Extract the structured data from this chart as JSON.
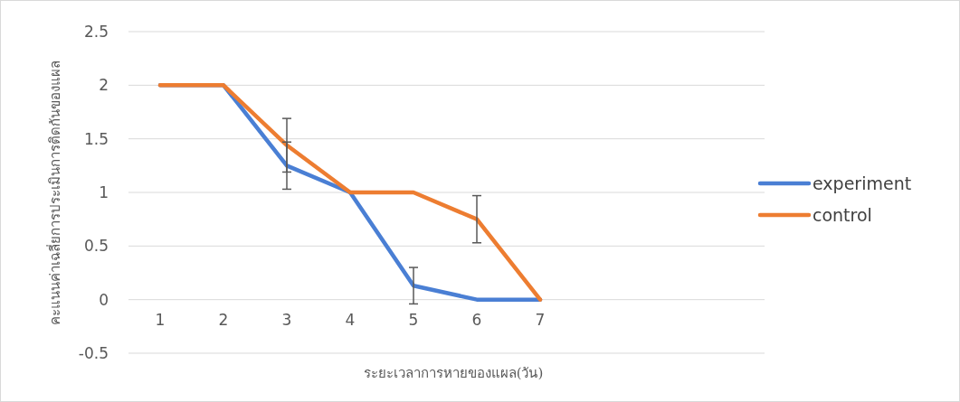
{
  "chart_data": {
    "type": "line",
    "xlabel": "ระยะเวลาการหายของแผล(วัน)",
    "ylabel": "คะแนนค่าเฉลี่ยการประเมินการติดกันของแผล",
    "categories": [
      "1",
      "2",
      "3",
      "4",
      "5",
      "6",
      "7"
    ],
    "series": [
      {
        "name": "experiment",
        "color": "#4a7fd4",
        "values": [
          2,
          2,
          1.25,
          1,
          0.13,
          0,
          0
        ],
        "errors": [
          null,
          null,
          0.22,
          null,
          0.17,
          null,
          null
        ]
      },
      {
        "name": "control",
        "color": "#ed7d31",
        "values": [
          2,
          2,
          1.44,
          1,
          1,
          0.75,
          0
        ],
        "errors": [
          null,
          null,
          0.25,
          null,
          null,
          0.22,
          null
        ]
      }
    ],
    "ylim": [
      -0.5,
      2.5
    ],
    "yticks": [
      -0.5,
      0,
      0.5,
      1,
      1.5,
      2,
      2.5
    ],
    "grid": "y",
    "legend": "right",
    "marker": "none",
    "line_style": "solid"
  }
}
